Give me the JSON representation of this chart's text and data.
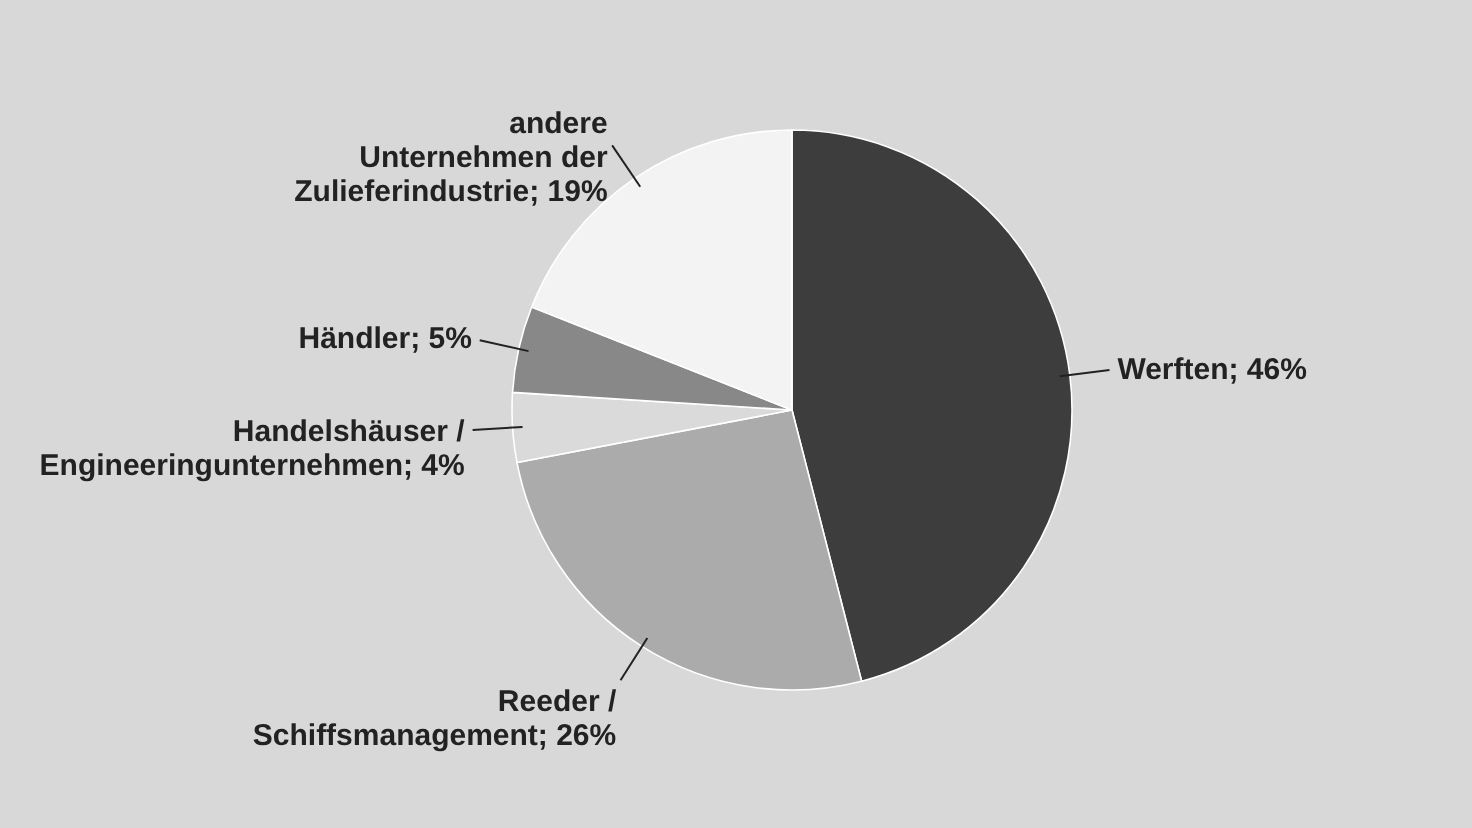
{
  "chart_data": {
    "type": "pie",
    "categories": [
      "Werften",
      "Reeder / Schiffsmanagement",
      "Handelshäuser / Engineeringunternehmen",
      "Händler",
      "andere Unternehmen der Zulieferindustrie"
    ],
    "values": [
      46,
      26,
      4,
      5,
      19
    ],
    "value_labels": [
      "46%",
      "26%",
      "4%",
      "5%",
      "19%"
    ],
    "colors": [
      "#3d3d3d",
      "#ababab",
      "#dadada",
      "#888888",
      "#f3f3f3"
    ]
  }
}
